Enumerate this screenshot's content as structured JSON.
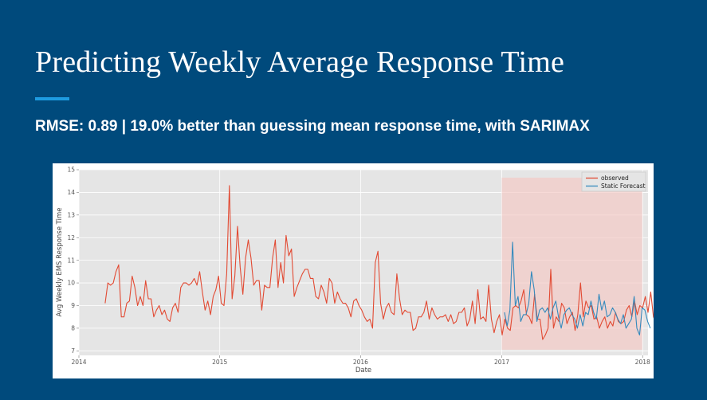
{
  "slide": {
    "title": "Predicting Weekly Average Response Time",
    "subtitle": "RMSE: 0.89  |  19.0% better than guessing mean response time, with SARIMAX"
  },
  "chart_data": {
    "type": "line",
    "xlabel": "Date",
    "ylabel": "Avg Weekly EMS Response Time",
    "xlim": [
      "2014-01-01",
      "2018-01-15"
    ],
    "ylim": [
      6.8,
      15
    ],
    "x_ticks": [
      "2014",
      "2015",
      "2016",
      "2017",
      "2018"
    ],
    "y_ticks": [
      7,
      8,
      9,
      10,
      11,
      12,
      13,
      14,
      15
    ],
    "grid": true,
    "legend_position": "top-right",
    "forecast_region": {
      "start": "2017-01-01",
      "end": "2017-12-31",
      "color": "#f4c7c3"
    },
    "series": [
      {
        "name": "observed",
        "color": "#e24a33",
        "x_start": "2014-03-10",
        "x_step_days": 7,
        "values": [
          9.1,
          10.0,
          9.9,
          10.0,
          10.5,
          10.8,
          8.5,
          8.5,
          9.1,
          9.2,
          10.3,
          9.8,
          9.0,
          9.4,
          9.0,
          10.1,
          9.3,
          9.3,
          8.5,
          8.8,
          9.0,
          8.6,
          8.8,
          8.4,
          8.3,
          8.9,
          9.1,
          8.7,
          9.8,
          10.0,
          10.0,
          9.9,
          10.0,
          10.2,
          9.9,
          10.5,
          9.6,
          8.8,
          9.2,
          8.6,
          9.4,
          9.7,
          10.3,
          9.1,
          9.0,
          10.4,
          14.3,
          9.3,
          10.3,
          12.5,
          10.7,
          9.5,
          11.1,
          11.9,
          11.1,
          9.9,
          10.1,
          10.1,
          8.8,
          9.9,
          9.8,
          9.8,
          11.1,
          11.9,
          9.8,
          10.9,
          10.0,
          12.1,
          11.2,
          11.5,
          9.4,
          9.8,
          10.1,
          10.4,
          10.6,
          10.6,
          10.2,
          10.2,
          9.4,
          9.3,
          9.9,
          9.6,
          9.1,
          10.2,
          10.0,
          9.1,
          9.6,
          9.3,
          9.1,
          9.1,
          8.9,
          8.5,
          9.2,
          9.3,
          9.0,
          8.8,
          8.5,
          8.3,
          8.4,
          8.0,
          10.9,
          11.4,
          9.1,
          8.4,
          8.9,
          9.1,
          8.7,
          8.6,
          10.4,
          9.3,
          8.6,
          8.8,
          8.7,
          8.7,
          7.9,
          8.0,
          8.5,
          8.5,
          8.7,
          9.2,
          8.4,
          8.9,
          8.6,
          8.4,
          8.5,
          8.5,
          8.6,
          8.3,
          8.6,
          8.2,
          8.3,
          8.7,
          8.7,
          8.9,
          8.1,
          8.4,
          9.2,
          8.2,
          9.7,
          8.4,
          8.5,
          8.3,
          9.9,
          8.4,
          7.8,
          8.3,
          8.6,
          7.7,
          8.4,
          8.0,
          7.9,
          8.9,
          9.0,
          8.9,
          9.2,
          9.7,
          8.6,
          8.5,
          8.2,
          9.5,
          8.4,
          8.4,
          7.5,
          7.7,
          8.0,
          10.6,
          8.0,
          8.5,
          8.3,
          9.1,
          8.9,
          8.2,
          8.5,
          8.7,
          7.9,
          8.6,
          10.0,
          8.5,
          9.2,
          8.9,
          9.0,
          8.4,
          8.5,
          8.0,
          8.3,
          8.5,
          8.0,
          8.3,
          8.1,
          8.7,
          8.3,
          8.2,
          8.3,
          8.8,
          9.0,
          8.5,
          9.2,
          8.6,
          9.0,
          8.9,
          9.4,
          8.7,
          9.6,
          8.5,
          8.2,
          8.7,
          9.0,
          8.0,
          9.2,
          9.6,
          9.4,
          9.0,
          8.3
        ]
      },
      {
        "name": "Static Forecast",
        "color": "#348abd",
        "x_start": "2017-01-08",
        "x_step_days": 7,
        "values": [
          8.7,
          8.1,
          8.8,
          11.8,
          9.0,
          9.4,
          8.3,
          8.6,
          8.6,
          9.1,
          10.5,
          9.7,
          8.3,
          8.8,
          8.9,
          8.7,
          8.9,
          8.4,
          8.9,
          9.2,
          8.5,
          8.0,
          8.6,
          8.8,
          8.9,
          8.6,
          8.4,
          8.0,
          8.6,
          8.1,
          8.7,
          8.6,
          9.2,
          8.7,
          8.4,
          9.5,
          8.8,
          9.2,
          8.5,
          8.6,
          8.9,
          8.7,
          8.4,
          8.2,
          8.6,
          8.0,
          8.2,
          8.4,
          9.4,
          8.0,
          7.7,
          8.9,
          8.8,
          8.3,
          8.0
        ]
      }
    ]
  }
}
